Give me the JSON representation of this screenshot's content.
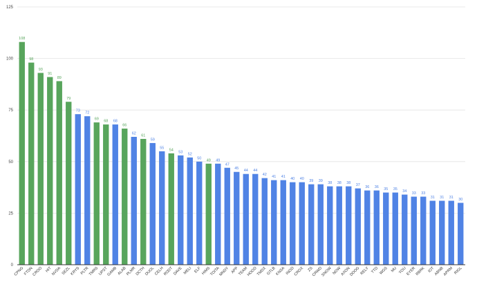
{
  "chart_data": {
    "type": "bar",
    "title": "",
    "xlabel": "",
    "ylabel": "",
    "ylim": [
      0,
      125
    ],
    "yticks": [
      0,
      25,
      50,
      75,
      100,
      125
    ],
    "grid": "horizontal",
    "legend": "none",
    "colors": {
      "green": "#58A55C",
      "blue": "#5083E5",
      "grid": "#E3E3E3",
      "axis": "#333333"
    },
    "categories": [
      "CPNG",
      "FTDN",
      "CRDO",
      "HIT",
      "NVDA",
      "SEZL",
      "KRYS",
      "PLTR",
      "TMRS",
      "UPST",
      "GAMB",
      "ALAB",
      "PLMR",
      "DCTH",
      "DUOL",
      "CELH",
      "RDDT",
      "DAVE",
      "MELI",
      "ELF",
      "HIMS",
      "TOITA",
      "MNDY",
      "APP",
      "TEAM",
      "HOOD",
      "TMDX",
      "GTLB",
      "KNSA",
      "INOD",
      "CROX",
      "ZS",
      "CRWD",
      "SNOW",
      "NOW",
      "AXON",
      "DDOG",
      "RELY",
      "TTD",
      "WGS",
      "MU",
      "YOU",
      "EYER",
      "RBRK",
      "IOT",
      "ABNB",
      "APRM",
      "RIGL"
    ],
    "values": [
      108,
      98,
      93,
      91,
      89,
      79,
      73,
      72,
      69,
      68,
      68,
      66,
      62,
      61,
      59,
      55,
      54,
      53,
      52,
      50,
      49,
      49,
      47,
      45,
      44,
      44,
      42,
      41,
      41,
      40,
      40,
      39,
      39,
      38,
      38,
      38,
      37,
      36,
      36,
      35,
      35,
      34,
      33,
      33,
      31,
      31,
      31,
      30
    ],
    "bar_colors": [
      "green",
      "green",
      "green",
      "green",
      "green",
      "green",
      "blue",
      "blue",
      "green",
      "green",
      "blue",
      "green",
      "blue",
      "green",
      "blue",
      "blue",
      "green",
      "blue",
      "blue",
      "blue",
      "green",
      "blue",
      "blue",
      "blue",
      "blue",
      "blue",
      "blue",
      "blue",
      "blue",
      "blue",
      "blue",
      "blue",
      "blue",
      "blue",
      "blue",
      "blue",
      "blue",
      "blue",
      "blue",
      "blue",
      "blue",
      "blue",
      "blue",
      "blue",
      "blue",
      "blue",
      "blue",
      "blue"
    ]
  }
}
